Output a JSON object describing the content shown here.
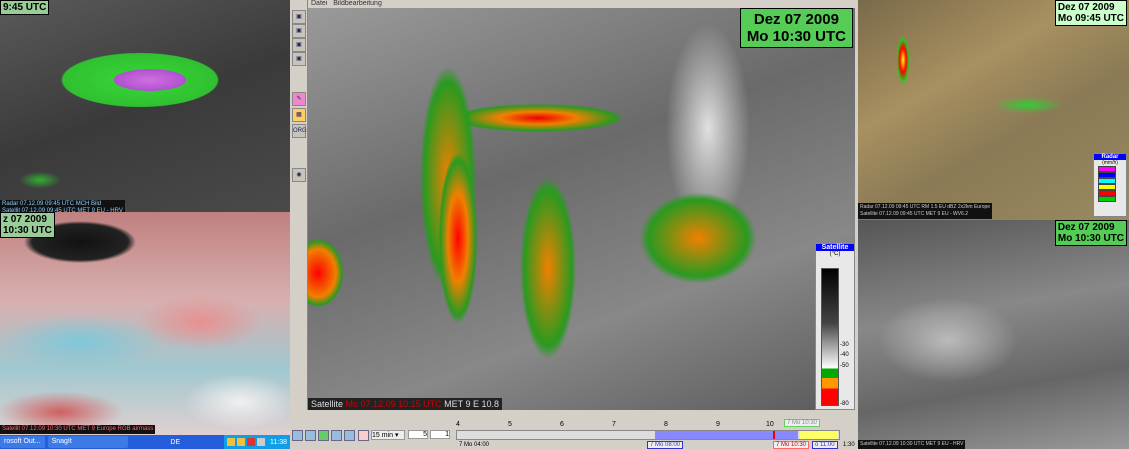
{
  "left_top": {
    "time": "9:45 UTC",
    "info": [
      "Radar 07.12.09 09:45 UTC  MCH Bild",
      "Satellit 07.12.09 09:45 UTC  MET 9 EU - HRV"
    ]
  },
  "left_bottom": {
    "date": "z 07 2009",
    "time": "10:30 UTC",
    "info": "Satellit 07.12.09 10:30 UTC  MET 9 Europe RGB airmass"
  },
  "taskbar": {
    "item1": "rosoft Out...",
    "item2": "SnagIt",
    "lang": "DE",
    "clock": "11:38"
  },
  "menu": {
    "items": [
      "Datei",
      "Bildbearbeitung"
    ]
  },
  "toolbar": {
    "org_label": "ORG"
  },
  "satellite": {
    "date": "Dez 07 2009",
    "time": "Mo 10:30 UTC",
    "info_label": "Satellite",
    "info_time": "Mo 07.12.09 10:15 UTC",
    "info_source": "MET 9 E 10.8",
    "legend": {
      "title": "Satellite",
      "unit": "(°C)",
      "ticks": [
        "-30",
        "-40",
        "-50",
        "-80"
      ]
    }
  },
  "timeline": {
    "interval": "15 min",
    "step": "5",
    "count": "1",
    "hours": [
      "4",
      "5",
      "6",
      "7",
      "8",
      "9",
      "10"
    ],
    "start_label": "7 Mo 04:00",
    "range_start": "7 Mo 08:00",
    "current": "7 Mo 10:30",
    "current_top": "7 Mo 10:30",
    "range_end": "o 11:00",
    "end_partial": "1:30"
  },
  "right_top": {
    "date": "Dez 07 2009",
    "time": "Mo 09:45 UTC",
    "info": [
      "Radar 07.12.09 09:45 UTC  RM 1.5  EU  dBZ 2x2km Europe",
      "Satellite 07.12.09 09:45 UTC  MET 9 EU - WV6.2"
    ],
    "legend": {
      "title": "Radar",
      "unit": "(mm/h)",
      "colors": [
        "#ff00ff",
        "#0000ff",
        "#00ffff",
        "#ffff00",
        "#ff0000",
        "#00cc00"
      ]
    }
  },
  "right_bottom": {
    "date": "Dez 07 2009",
    "time": "Mo 10:30 UTC",
    "info": "Satellite 07.12.09 10:30 UTC  MET 9 EU - HRV"
  }
}
